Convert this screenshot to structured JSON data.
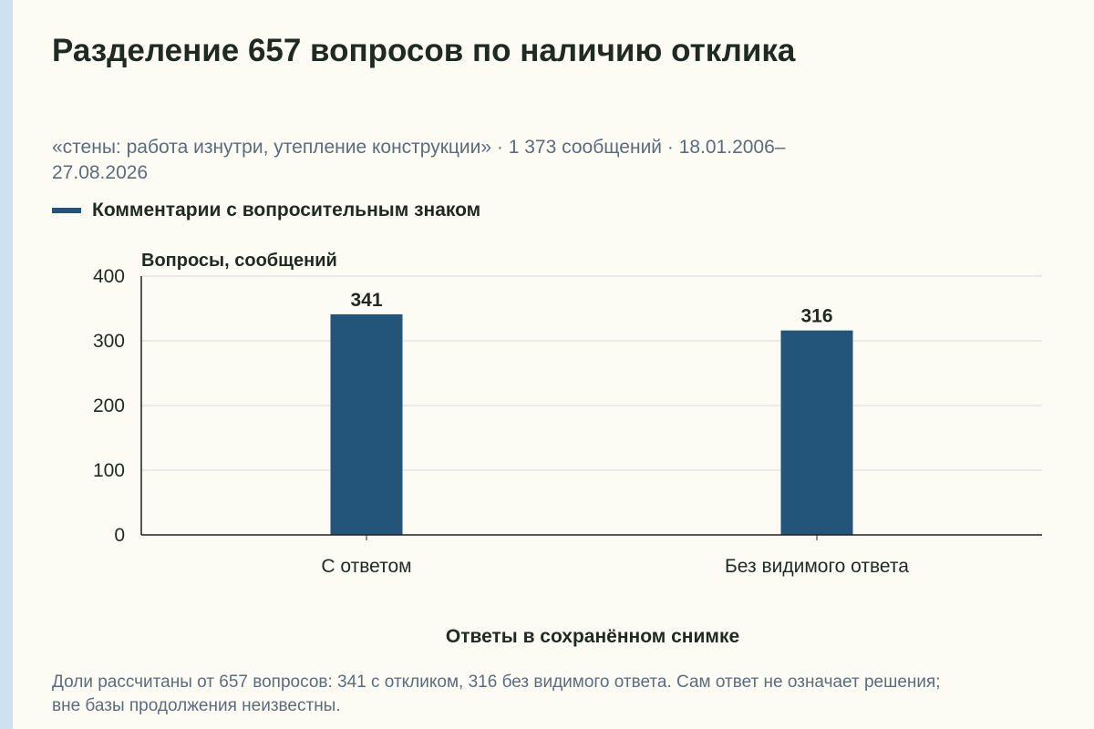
{
  "header": {
    "title": "Разделение 657 вопросов по наличию отклика",
    "subtitle": "«стены: работа изнутри, утепление конструкции» · 1 373 сообщений · 18.01.2006–27.08.2026"
  },
  "footer": {
    "note": "Доли рассчитаны от 657 вопросов: 341 с откликом, 316 без видимого ответа. Сам ответ не означает решения; вне базы продолжения неизвестны."
  },
  "colors": {
    "bar": "#235479",
    "grid": "#d9d9d9",
    "axis": "#222222",
    "text": "#1f2a22",
    "muted": "#5c6c7c"
  },
  "chart_data": {
    "type": "bar",
    "categories": [
      "С ответом",
      "Без видимого ответа"
    ],
    "series": [
      {
        "name": "Комментарии с вопросительным знаком",
        "values": [
          341,
          316
        ]
      }
    ],
    "xlabel": "Ответы в сохранённом снимке",
    "ylabel": "Вопросы, сообщений",
    "ylim": [
      0,
      400
    ],
    "yticks": [
      0,
      100,
      200,
      300,
      400
    ],
    "data_labels": true,
    "grid": true,
    "legend_position": "top-left"
  }
}
